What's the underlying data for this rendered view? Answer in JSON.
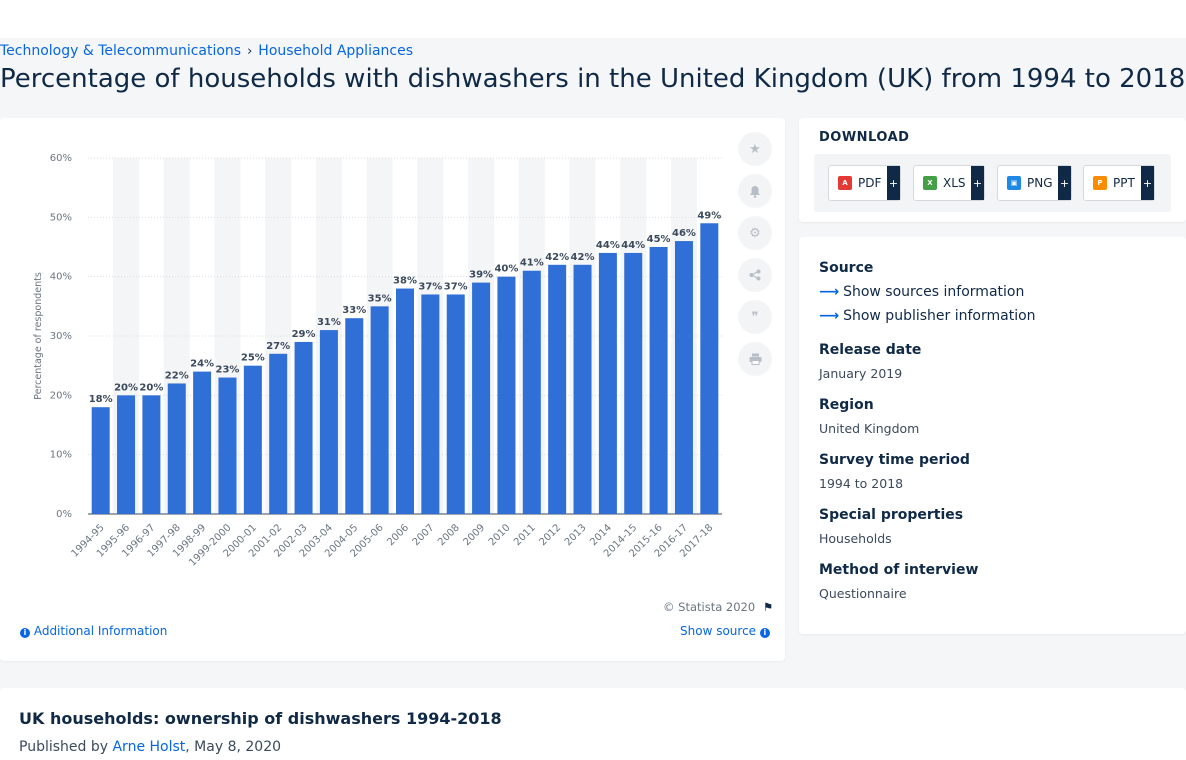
{
  "breadcrumb": {
    "items": [
      "Technology & Telecommunications",
      "Household Appliances"
    ],
    "separator": "›"
  },
  "page_title": "Percentage of households with dishwashers in the United Kingdom (UK) from 1994 to 2018",
  "toolbar": {
    "icons": [
      "star-icon",
      "bell-icon",
      "gear-icon",
      "share-icon",
      "quote-icon",
      "print-icon"
    ]
  },
  "download": {
    "label": "DOWNLOAD",
    "buttons": [
      {
        "label": "PDF",
        "plus": "+",
        "icon": "pdf-file-icon",
        "color": "#e53935"
      },
      {
        "label": "XLS",
        "plus": "+",
        "icon": "xls-file-icon",
        "color": "#43a047"
      },
      {
        "label": "PNG",
        "plus": "+",
        "icon": "png-file-icon",
        "color": "#1e88e5"
      },
      {
        "label": "PPT",
        "plus": "+",
        "icon": "ppt-file-icon",
        "color": "#fb8c00"
      }
    ]
  },
  "meta": {
    "source_label": "Source",
    "show_sources": "Show sources information",
    "show_publisher": "Show publisher information",
    "release_label": "Release date",
    "release_value": "January 2019",
    "region_label": "Region",
    "region_value": "United Kingdom",
    "period_label": "Survey time period",
    "period_value": "1994 to 2018",
    "special_label": "Special properties",
    "special_value": "Households",
    "method_label": "Method of interview",
    "method_value": "Questionnaire"
  },
  "chart_footer": {
    "copyright": "© Statista 2020",
    "additional": "Additional Information",
    "show_source": "Show source"
  },
  "article": {
    "title": "UK households: ownership of dishwashers 1994-2018",
    "published_prefix": "Published by",
    "author": "Arne Holst",
    "date": ", May 8, 2020"
  },
  "colors": {
    "bar": "#2f6fd6",
    "accent": "#0666e5",
    "text": "#0f2946"
  },
  "chart_data": {
    "type": "bar",
    "categories": [
      "1994-95",
      "1995-96",
      "1996-97",
      "1997-98",
      "1998-99",
      "1999-2000",
      "2000-01",
      "2001-02",
      "2002-03",
      "2003-04",
      "2004-05",
      "2005-06",
      "2006",
      "2007",
      "2008",
      "2009",
      "2010",
      "2011",
      "2012",
      "2013",
      "2014",
      "2014-15",
      "2015-16",
      "2016-17",
      "2017-18"
    ],
    "values": [
      18,
      20,
      20,
      22,
      24,
      23,
      25,
      27,
      29,
      31,
      33,
      35,
      38,
      37,
      37,
      39,
      40,
      41,
      42,
      42,
      44,
      44,
      45,
      46,
      49
    ],
    "ylabel": "Percentage of respondents",
    "yticks": [
      "0%",
      "10%",
      "20%",
      "30%",
      "40%",
      "50%",
      "60%"
    ],
    "ylim": [
      0,
      60
    ],
    "value_suffix": "%",
    "grid": true
  }
}
